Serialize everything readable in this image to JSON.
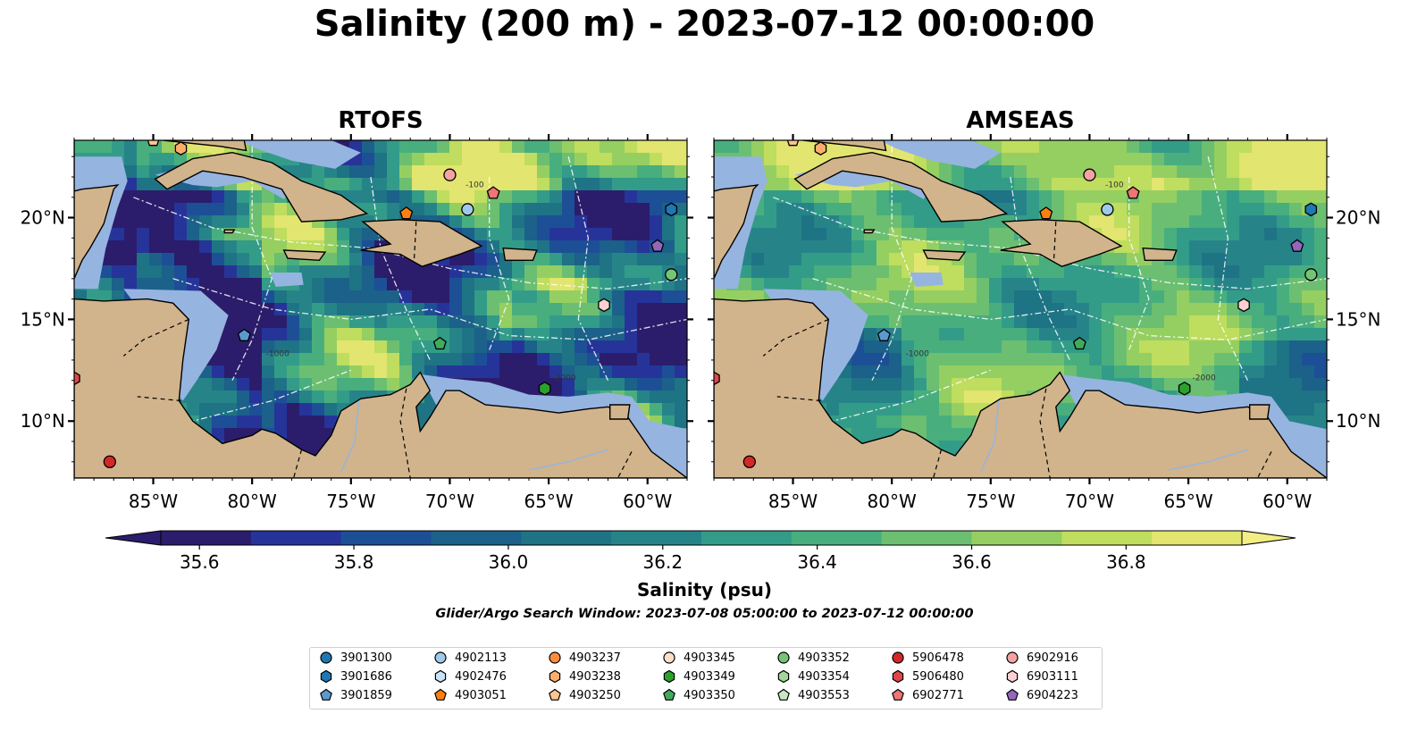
{
  "title": "Salinity (200 m) - 2023-07-12 00:00:00",
  "panels": [
    {
      "title": "RTOFS"
    },
    {
      "title": "AMSEAS"
    }
  ],
  "axes": {
    "x_ticks": [
      "85°W",
      "80°W",
      "75°W",
      "70°W",
      "65°W",
      "60°W"
    ],
    "x_tick_values": [
      -85,
      -80,
      -75,
      -70,
      -65,
      -60
    ],
    "y_ticks": [
      "20°N",
      "15°N",
      "10°N"
    ],
    "y_tick_values": [
      20,
      15,
      10
    ],
    "lon_range": [
      -89,
      -58
    ],
    "lat_range": [
      7.2,
      23.8
    ]
  },
  "colorbar": {
    "label": "Salinity (psu)",
    "ticks": [
      "35.6",
      "35.8",
      "36.0",
      "36.2",
      "36.4",
      "36.6",
      "36.8"
    ],
    "tick_values": [
      35.6,
      35.8,
      36.0,
      36.2,
      36.4,
      36.6,
      36.8
    ],
    "range": [
      35.55,
      36.95
    ],
    "extend": "both",
    "colors": [
      "#2b1d6b",
      "#26349a",
      "#1d4f96",
      "#1b6189",
      "#1e7384",
      "#268489",
      "#339c88",
      "#48ae7e",
      "#6cbf71",
      "#95cf62",
      "#bfdd5e",
      "#e2e56f"
    ]
  },
  "contour_labels": [
    "-100",
    "-1000",
    "-2000"
  ],
  "search_window": "Glider/Argo Search Window: 2023-07-08 05:00:00 to 2023-07-12 00:00:00",
  "colors": {
    "land": "#d1b48c",
    "shallow_water": "#96b4e0",
    "ocean_low": "#2b1d6b",
    "ocean_high": "#e2e56f"
  },
  "legend": [
    {
      "id": "3901300",
      "marker": "circle",
      "color": "#1f77b4"
    },
    {
      "id": "3901686",
      "marker": "hexagon",
      "color": "#1f77b4"
    },
    {
      "id": "3901859",
      "marker": "pentagon",
      "color": "#5a9ad0"
    },
    {
      "id": "4902113",
      "marker": "circle",
      "color": "#9ecae9"
    },
    {
      "id": "4902476",
      "marker": "hexagon",
      "color": "#c9e3f6"
    },
    {
      "id": "4903051",
      "marker": "pentagon",
      "color": "#ff7f0e"
    },
    {
      "id": "4903237",
      "marker": "circle",
      "color": "#fd8d3c"
    },
    {
      "id": "4903238",
      "marker": "hexagon",
      "color": "#fdae6b"
    },
    {
      "id": "4903250",
      "marker": "pentagon",
      "color": "#fdc58f"
    },
    {
      "id": "4903345",
      "marker": "circle",
      "color": "#fde0c5"
    },
    {
      "id": "4903349",
      "marker": "hexagon",
      "color": "#2ca02c"
    },
    {
      "id": "4903350",
      "marker": "pentagon",
      "color": "#41ab5d"
    },
    {
      "id": "4903352",
      "marker": "circle",
      "color": "#74c476"
    },
    {
      "id": "4903354",
      "marker": "hexagon",
      "color": "#a1d99b"
    },
    {
      "id": "4903553",
      "marker": "pentagon",
      "color": "#c7e9c0"
    },
    {
      "id": "5906478",
      "marker": "circle",
      "color": "#d62728"
    },
    {
      "id": "5906480",
      "marker": "hexagon",
      "color": "#e0474a"
    },
    {
      "id": "6902771",
      "marker": "pentagon",
      "color": "#f07575"
    },
    {
      "id": "6902916",
      "marker": "circle",
      "color": "#f4a3a3"
    },
    {
      "id": "6903111",
      "marker": "hexagon",
      "color": "#fbd0d0"
    },
    {
      "id": "6904223",
      "marker": "pentagon",
      "color": "#9467bd"
    }
  ],
  "floats": [
    {
      "id": "4903250",
      "lon": -85.0,
      "lat": 23.8
    },
    {
      "id": "4903238",
      "lon": -83.6,
      "lat": 23.4
    },
    {
      "id": "6902916",
      "lon": -70.0,
      "lat": 22.1
    },
    {
      "id": "6902771",
      "lon": -67.8,
      "lat": 21.2
    },
    {
      "id": "4903051",
      "lon": -72.2,
      "lat": 20.2
    },
    {
      "id": "4902113",
      "lon": -69.1,
      "lat": 20.4
    },
    {
      "id": "3901686",
      "lon": -58.8,
      "lat": 20.4
    },
    {
      "id": "6904223",
      "lon": -59.5,
      "lat": 18.6
    },
    {
      "id": "4903352",
      "lon": -58.8,
      "lat": 17.2
    },
    {
      "id": "6903111",
      "lon": -62.2,
      "lat": 15.7
    },
    {
      "id": "3901859",
      "lon": -80.4,
      "lat": 14.2
    },
    {
      "id": "4903350",
      "lon": -70.5,
      "lat": 13.8
    },
    {
      "id": "4903349",
      "lon": -65.2,
      "lat": 11.6
    },
    {
      "id": "5906480",
      "lon": -89.0,
      "lat": 12.1
    },
    {
      "id": "5906478",
      "lon": -87.2,
      "lat": 8.0
    }
  ]
}
